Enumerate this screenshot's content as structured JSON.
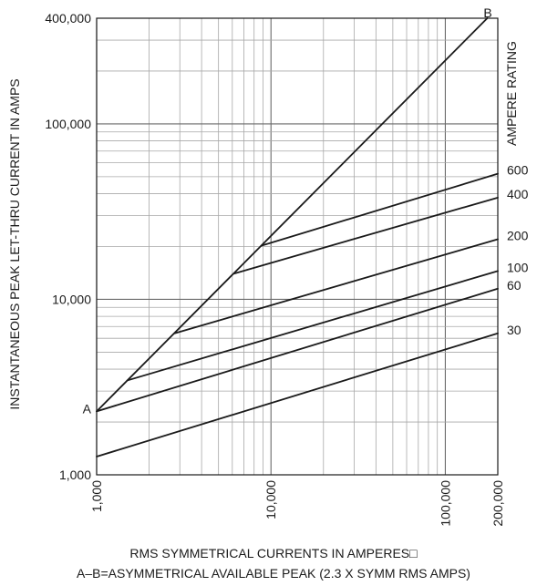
{
  "chart_data": {
    "type": "line",
    "xscale": "log",
    "yscale": "log",
    "xlim": [
      1000,
      200000
    ],
    "ylim": [
      1000,
      400000
    ],
    "grid": true,
    "xlabel": "RMS SYMMETRICAL CURRENTS IN AMPERES□",
    "xlabel_sub": "A–B=ASYMMETRICAL AVAILABLE PEAK (2.3 X SYMM RMS AMPS)",
    "ylabel": "INSTANTANEOUS PEAK LET-THRU CURRENT IN AMPS",
    "legend_title": "AMPERE RATING",
    "x_ticks": [
      {
        "value": 1000,
        "label": "1,000"
      },
      {
        "value": 10000,
        "label": "10,000"
      },
      {
        "value": 100000,
        "label": "100,000"
      },
      {
        "value": 200000,
        "label": "200,000"
      }
    ],
    "y_ticks": [
      {
        "value": 1000,
        "label": "1,000"
      },
      {
        "value": 10000,
        "label": "10,000"
      },
      {
        "value": 100000,
        "label": "100,000"
      },
      {
        "value": 400000,
        "label": "400,000"
      }
    ],
    "reference_line": {
      "start_label": "A",
      "end_label": "B",
      "points": [
        [
          1000,
          2300
        ],
        [
          174000,
          400000
        ]
      ]
    },
    "series": [
      {
        "name": "600",
        "points": [
          [
            8800,
            20200
          ],
          [
            200000,
            52000
          ]
        ]
      },
      {
        "name": "400",
        "points": [
          [
            6100,
            14000
          ],
          [
            200000,
            38000
          ]
        ]
      },
      {
        "name": "200",
        "points": [
          [
            2800,
            6400
          ],
          [
            200000,
            22000
          ]
        ]
      },
      {
        "name": "100",
        "points": [
          [
            1500,
            3450
          ],
          [
            200000,
            14500
          ]
        ]
      },
      {
        "name": "60",
        "points": [
          [
            1000,
            2300
          ],
          [
            200000,
            11500
          ]
        ]
      },
      {
        "name": "30",
        "points": [
          [
            1000,
            1270
          ],
          [
            200000,
            6400
          ]
        ]
      }
    ]
  }
}
